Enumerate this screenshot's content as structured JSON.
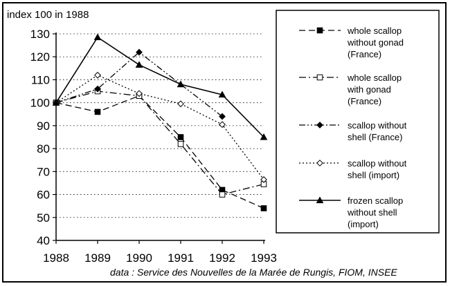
{
  "chart_data": {
    "type": "line",
    "ylabel": "index 100 in 1988",
    "xlabel": "",
    "x": [
      1988,
      1989,
      1990,
      1991,
      1992,
      1993
    ],
    "x_tick_labels": [
      "1988",
      "1989",
      "1990",
      "1991",
      "1992",
      "1993"
    ],
    "y_ticks": [
      40,
      50,
      60,
      70,
      80,
      90,
      100,
      110,
      120,
      130
    ],
    "y_tick_labels": [
      "40",
      "50",
      "60",
      "70",
      "80",
      "90",
      "100",
      "110",
      "120",
      "130"
    ],
    "ylim": [
      40,
      130
    ],
    "grid": "horizontal dotted",
    "legend_position": "right",
    "series": [
      {
        "name": "whole scallop without gonad (France)",
        "legend_lines": [
          "whole scallop",
          "without gonad",
          "(France)"
        ],
        "style": "dashed",
        "marker": "filled-square",
        "values": [
          100,
          96,
          103,
          85,
          62,
          54
        ]
      },
      {
        "name": "whole scallop with gonad (France)",
        "legend_lines": [
          "whole scallop",
          "with gonad",
          "(France)"
        ],
        "style": "dashdot",
        "marker": "open-square",
        "values": [
          100,
          105,
          103,
          82,
          60,
          64.5
        ]
      },
      {
        "name": "scallop without shell (France)",
        "legend_lines": [
          "scallop without",
          "shell (France)"
        ],
        "style": "dashdotdot",
        "marker": "filled-diamond",
        "values": [
          100,
          106,
          122,
          null,
          94,
          null
        ]
      },
      {
        "name": "scallop without shell (import)",
        "legend_lines": [
          "scallop without",
          "shell (import)"
        ],
        "style": "dotted",
        "marker": "open-diamond",
        "values": [
          100,
          112,
          104,
          99.5,
          90.5,
          66.5
        ]
      },
      {
        "name": "frozen scallop without shell (import)",
        "legend_lines": [
          "frozen scallop",
          "without shell",
          "(import)"
        ],
        "style": "solid",
        "marker": "filled-triangle",
        "values": [
          100,
          128.5,
          116.5,
          108,
          103.5,
          85
        ]
      }
    ]
  },
  "source_note": "data : Service des Nouvelles de la Marée de Rungis, FIOM, INSEE"
}
